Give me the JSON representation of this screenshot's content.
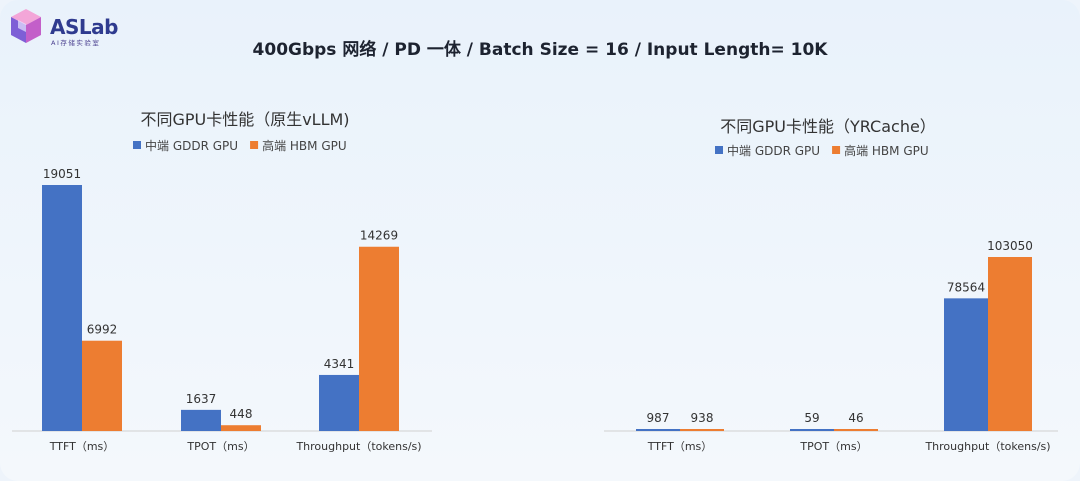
{
  "logo": {
    "name": "ASLab",
    "subtitle": "AI存储实验室"
  },
  "main_title": "400Gbps 网络 / PD 一体 / Batch Size = 16 / Input Length= 10K",
  "colors": {
    "gddr": "#4472c4",
    "hbm": "#ed7d31"
  },
  "chart_data": [
    {
      "type": "bar",
      "title": "不同GPU卡性能（原生vLLM)",
      "categories": [
        "TTFT（ms）",
        "TPOT（ms）",
        "Throughput（tokens/s)"
      ],
      "series": [
        {
          "name": "中端 GDDR GPU",
          "values": [
            19051,
            1637,
            4341
          ]
        },
        {
          "name": "高端 HBM GPU",
          "values": [
            6992,
            448,
            14269
          ]
        }
      ],
      "ylim": [
        0,
        19051
      ],
      "legend": "top",
      "grid": false
    },
    {
      "type": "bar",
      "title": "不同GPU卡性能（YRCache）",
      "categories": [
        "TTFT（ms）",
        "TPOT（ms）",
        "Throughput（tokens/s)"
      ],
      "series": [
        {
          "name": "中端 GDDR GPU",
          "values": [
            987,
            59,
            78564
          ]
        },
        {
          "name": "高端 HBM GPU",
          "values": [
            938,
            46,
            103050
          ]
        }
      ],
      "ylim": [
        0,
        103050
      ],
      "legend": "top",
      "grid": false
    }
  ]
}
